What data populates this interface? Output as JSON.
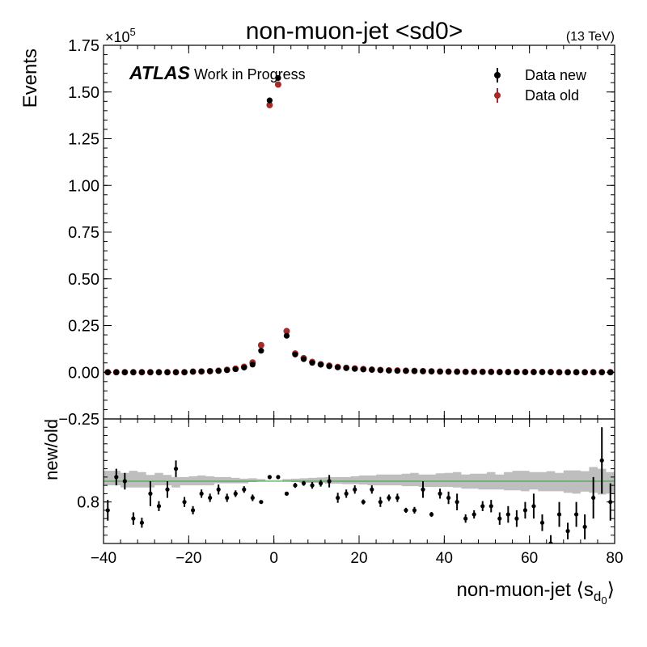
{
  "chart_data": {
    "type": "scatter",
    "title": "non-muon-jet <sd0>",
    "energy_label": "(13 TeV)",
    "experiment": "ATLAS",
    "experiment_note": "Work in Progress",
    "xlabel_main": "non-muon-jet ⟨s",
    "xlabel_sub": "d",
    "xlabel_subsub": "0",
    "xlabel_end": "⟩",
    "ylabel": "Events",
    "y_multiplier_base": "×10",
    "y_multiplier_exp": "5",
    "ratio_ylabel": "new/old",
    "xlim": [
      -40,
      80
    ],
    "ylim_main": [
      -0.25,
      1.75
    ],
    "ylim_ratio": [
      0.7,
      1.0
    ],
    "x_ticks": [
      -40,
      -20,
      0,
      20,
      40,
      60,
      80
    ],
    "x_tick_labels": [
      "−40",
      "−20",
      "0",
      "20",
      "40",
      "60",
      "80"
    ],
    "y_ticks_main": [
      -0.25,
      0.0,
      0.25,
      0.5,
      0.75,
      1.0,
      1.25,
      1.5,
      1.75
    ],
    "y_tick_labels_main": [
      "−0.25",
      "0.00",
      "0.25",
      "0.50",
      "0.75",
      "1.00",
      "1.25",
      "1.50",
      "1.75"
    ],
    "y_ticks_ratio": [
      0.8
    ],
    "y_tick_labels_ratio": [
      "0.8"
    ],
    "legend_position": "top-right",
    "colors": {
      "data_new": "#000000",
      "data_old": "#a52a2a",
      "band": "#bebebe",
      "reference": "#2ca02c"
    },
    "x": [
      -39,
      -37,
      -35,
      -33,
      -31,
      -29,
      -27,
      -25,
      -23,
      -21,
      -19,
      -17,
      -15,
      -13,
      -11,
      -9,
      -7,
      -5,
      -3,
      -1,
      1,
      3,
      5,
      7,
      9,
      11,
      13,
      15,
      17,
      19,
      21,
      23,
      25,
      27,
      29,
      31,
      33,
      35,
      37,
      39,
      41,
      43,
      45,
      47,
      49,
      51,
      53,
      55,
      57,
      59,
      61,
      63,
      65,
      67,
      69,
      71,
      73,
      75,
      77,
      79
    ],
    "series": [
      {
        "name": "Data new",
        "values": [
          0.0,
          0.0,
          0.0,
          0.0,
          0.0,
          0.0,
          0.0,
          0.0,
          0.0,
          0.0,
          0.003,
          0.004,
          0.005,
          0.007,
          0.011,
          0.016,
          0.025,
          0.041,
          0.115,
          1.455,
          1.575,
          0.195,
          0.095,
          0.07,
          0.05,
          0.04,
          0.032,
          0.026,
          0.022,
          0.018,
          0.015,
          0.013,
          0.011,
          0.009,
          0.008,
          0.007,
          0.006,
          0.005,
          0.004,
          0.003,
          0.003,
          0.002,
          0.002,
          0.002,
          0.002,
          0.001,
          0.001,
          0.001,
          0.001,
          0.001,
          0.001,
          0.001,
          0.0,
          0.0,
          0.0,
          0.0,
          0.0,
          0.0,
          0.0,
          0.0
        ]
      },
      {
        "name": "Data old",
        "values": [
          0.0,
          0.0,
          0.0,
          0.0,
          0.0,
          0.0,
          0.0,
          0.0,
          0.0,
          0.0,
          0.003,
          0.004,
          0.006,
          0.008,
          0.013,
          0.019,
          0.029,
          0.052,
          0.145,
          1.43,
          1.54,
          0.22,
          0.1,
          0.075,
          0.055,
          0.043,
          0.035,
          0.028,
          0.024,
          0.02,
          0.017,
          0.014,
          0.012,
          0.01,
          0.009,
          0.008,
          0.007,
          0.006,
          0.005,
          0.004,
          0.003,
          0.003,
          0.002,
          0.002,
          0.002,
          0.002,
          0.001,
          0.001,
          0.001,
          0.001,
          0.001,
          0.001,
          0.001,
          0.0,
          0.0,
          0.0,
          0.0,
          0.0,
          0.0,
          0.0
        ]
      }
    ],
    "ratio": {
      "name": "new/old",
      "values": [
        0.78,
        0.86,
        0.85,
        0.76,
        0.75,
        0.82,
        0.79,
        0.83,
        0.88,
        0.8,
        0.78,
        0.82,
        0.81,
        0.83,
        0.81,
        0.82,
        0.83,
        0.81,
        0.8,
        0.86,
        0.86,
        0.82,
        0.84,
        0.845,
        0.84,
        0.845,
        0.85,
        0.81,
        0.82,
        0.83,
        0.8,
        0.83,
        0.8,
        0.81,
        0.81,
        0.78,
        0.78,
        0.83,
        0.77,
        0.82,
        0.81,
        0.8,
        0.76,
        0.77,
        0.79,
        0.79,
        0.76,
        0.77,
        0.76,
        0.78,
        0.79,
        0.75,
        0.7,
        0.77,
        0.73,
        0.77,
        0.74,
        0.81,
        0.9,
        0.8
      ],
      "errors": [
        0.025,
        0.02,
        0.02,
        0.015,
        0.012,
        0.03,
        0.012,
        0.02,
        0.02,
        0.012,
        0.01,
        0.01,
        0.01,
        0.012,
        0.01,
        0.008,
        0.008,
        0.008,
        0.004,
        0.003,
        0.003,
        0.004,
        0.006,
        0.006,
        0.008,
        0.008,
        0.015,
        0.012,
        0.01,
        0.01,
        0.006,
        0.01,
        0.012,
        0.008,
        0.01,
        0.006,
        0.008,
        0.02,
        0.006,
        0.012,
        0.015,
        0.02,
        0.01,
        0.01,
        0.012,
        0.015,
        0.015,
        0.02,
        0.02,
        0.02,
        0.03,
        0.02,
        0.02,
        0.03,
        0.02,
        0.03,
        0.03,
        0.05,
        0.08,
        0.045
      ]
    },
    "band": {
      "lower": [
        0.84,
        0.84,
        0.835,
        0.835,
        0.835,
        0.835,
        0.84,
        0.84,
        0.835,
        0.84,
        0.84,
        0.84,
        0.84,
        0.845,
        0.845,
        0.845,
        0.845,
        0.848,
        0.85,
        0.852,
        0.852,
        0.85,
        0.848,
        0.846,
        0.846,
        0.846,
        0.844,
        0.844,
        0.843,
        0.843,
        0.842,
        0.84,
        0.84,
        0.84,
        0.84,
        0.838,
        0.838,
        0.836,
        0.836,
        0.836,
        0.836,
        0.835,
        0.832,
        0.832,
        0.83,
        0.83,
        0.83,
        0.828,
        0.828,
        0.826,
        0.83,
        0.826,
        0.826,
        0.826,
        0.822,
        0.82,
        0.825,
        0.822,
        0.818,
        0.82
      ],
      "upper": [
        0.875,
        0.875,
        0.87,
        0.875,
        0.872,
        0.865,
        0.87,
        0.865,
        0.86,
        0.86,
        0.862,
        0.864,
        0.862,
        0.86,
        0.86,
        0.858,
        0.856,
        0.857,
        0.855,
        0.853,
        0.853,
        0.855,
        0.856,
        0.857,
        0.858,
        0.859,
        0.86,
        0.86,
        0.86,
        0.862,
        0.864,
        0.864,
        0.866,
        0.866,
        0.866,
        0.868,
        0.87,
        0.866,
        0.866,
        0.869,
        0.87,
        0.872,
        0.866,
        0.868,
        0.868,
        0.872,
        0.866,
        0.872,
        0.875,
        0.875,
        0.872,
        0.872,
        0.874,
        0.87,
        0.876,
        0.876,
        0.874,
        0.884,
        0.88,
        0.872
      ]
    },
    "reference_line": 0.85
  }
}
